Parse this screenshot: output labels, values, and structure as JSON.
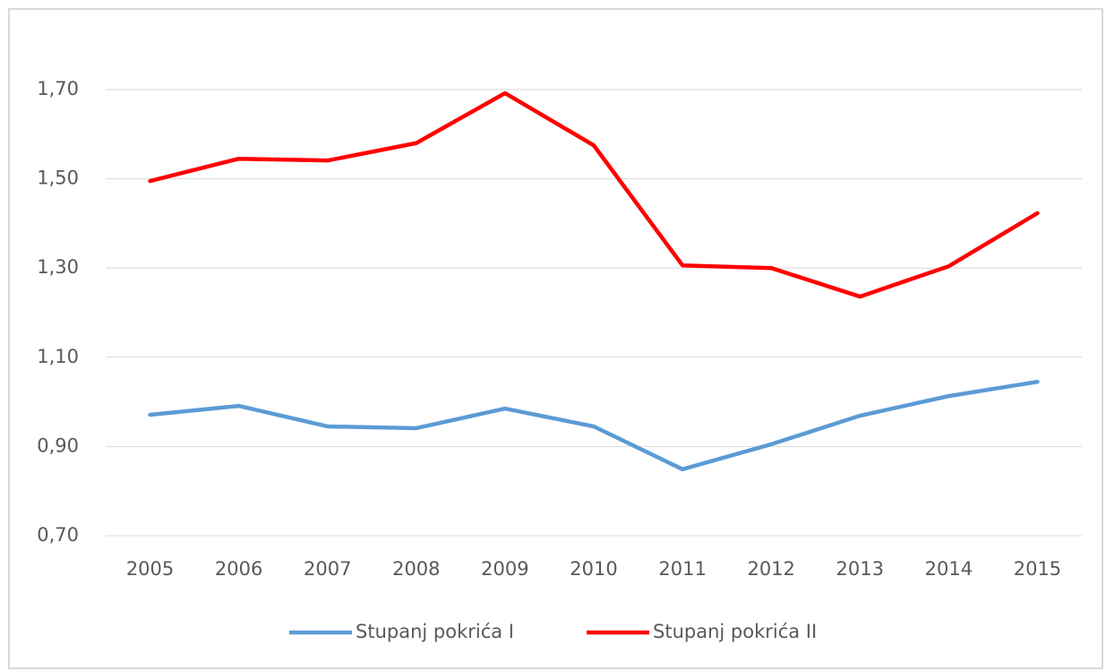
{
  "chart_data": {
    "type": "line",
    "categories": [
      "2005",
      "2006",
      "2007",
      "2008",
      "2009",
      "2010",
      "2011",
      "2012",
      "2013",
      "2014",
      "2015"
    ],
    "series": [
      {
        "name": "Stupanj pokrića I",
        "color": "#5b9bd5",
        "values": [
          0.971,
          0.991,
          0.945,
          0.941,
          0.985,
          0.945,
          0.849,
          0.905,
          0.969,
          1.013,
          1.045
        ]
      },
      {
        "name": "Stupanj pokrića II",
        "color": "#ff0000",
        "values": [
          1.495,
          1.545,
          1.541,
          1.58,
          1.692,
          1.575,
          1.306,
          1.3,
          1.236,
          1.304,
          1.423
        ]
      }
    ],
    "ylim": [
      0.7,
      1.7
    ],
    "yticks": [
      {
        "value": 0.7,
        "label": "0,70"
      },
      {
        "value": 0.9,
        "label": "0,90"
      },
      {
        "value": 1.1,
        "label": "1,10"
      },
      {
        "value": 1.3,
        "label": "1,30"
      },
      {
        "value": 1.5,
        "label": "1,50"
      },
      {
        "value": 1.7,
        "label": "1,70"
      }
    ],
    "grid": true,
    "legend": "bottom"
  }
}
